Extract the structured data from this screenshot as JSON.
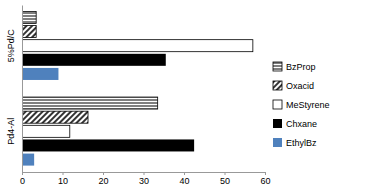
{
  "chart_data": {
    "type": "bar",
    "orientation": "horizontal",
    "categories": [
      "5%Pd/C",
      "Pd4-Al"
    ],
    "series": [
      {
        "name": "BzProp",
        "color": "#000000",
        "values": [
          3.5,
          33.5
        ]
      },
      {
        "name": "Oxacid",
        "color": "#000000",
        "values": [
          3.5,
          16.3
        ]
      },
      {
        "name": "MeStyrene",
        "color": "#ffffff",
        "values": [
          57,
          11.8
        ]
      },
      {
        "name": "Chxane",
        "color": "#000000",
        "values": [
          35.5,
          42.5
        ]
      },
      {
        "name": "EthylBz",
        "color": "#4f81bd",
        "values": [
          9,
          3
        ]
      }
    ],
    "xlim": [
      0,
      60
    ],
    "xticks": [
      0,
      10,
      20,
      30,
      40,
      50,
      60
    ],
    "grid": false,
    "legend": "right"
  }
}
